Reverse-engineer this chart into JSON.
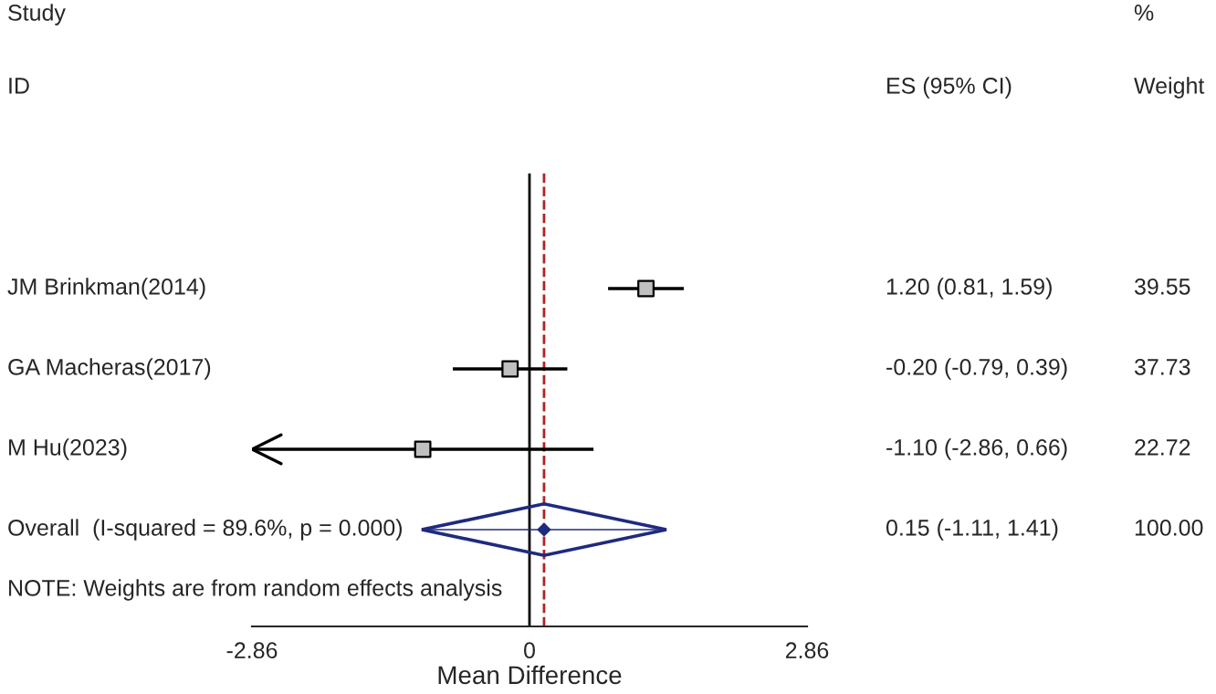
{
  "chart_data": {
    "type": "scatter",
    "orientation": "horizontal",
    "xlabel": "Mean Difference",
    "categories": [
      "JM Brinkman(2014)",
      "GA Macheras(2017)",
      "M Hu(2023)",
      "Overall  (I-squared = 89.6%, p = 0.000)"
    ],
    "xlim": [
      -2.86,
      2.86
    ],
    "xticks": [
      -2.86,
      0,
      2.86
    ],
    "series": [
      {
        "color": "#000000",
        "marker": "square",
        "values": [
          1.2,
          -0.2,
          -1.1,
          null
        ],
        "errors": [
          [
            0.81,
            1.59
          ],
          [
            -0.79,
            0.39
          ],
          [
            -2.86,
            0.66
          ],
          null
        ]
      },
      {
        "color": "#1f2a80",
        "marker": "diamond",
        "values": [
          null,
          null,
          null,
          0.15
        ],
        "errors": [
          null,
          null,
          null,
          [
            -1.11,
            1.41
          ]
        ]
      }
    ],
    "ref_lines": [
      {
        "axis": "x",
        "value": 0,
        "color": "#000000",
        "line_style": "solid"
      },
      {
        "axis": "x",
        "value": 0.15,
        "color": "#b22222",
        "line_style": "dashed"
      }
    ],
    "annotations": [
      "Study",
      "%",
      "ID",
      "ES (95% CI)",
      "Weight",
      "1.20 (0.81, 1.59)",
      "-0.20 (-0.79, 0.39)",
      "-1.10 (-2.86, 0.66)",
      "0.15 (-1.11, 1.41)",
      "39.55",
      "37.73",
      "22.72",
      "100.00",
      "NOTE: Weights are from random effects analysis"
    ],
    "grid": false,
    "legend": false
  }
}
